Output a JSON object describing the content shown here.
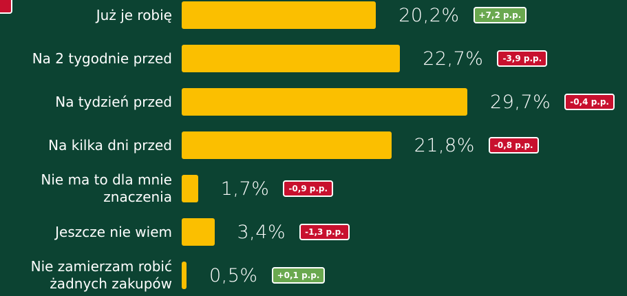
{
  "chart_data": {
    "type": "bar",
    "orientation": "horizontal",
    "categories": [
      "Już je robię",
      "Na 2 tygodnie przed",
      "Na tydzień przed",
      "Na kilka dni przed",
      "Nie ma to dla mnie znaczenia",
      "Jeszcze nie wiem",
      "Nie zamierzam robić żadnych zakupów"
    ],
    "values": [
      20.2,
      22.7,
      29.7,
      21.8,
      1.7,
      3.4,
      0.5
    ],
    "value_labels": [
      "20,2%",
      "22,7%",
      "29,7%",
      "21,8%",
      "1,7%",
      "3,4%",
      "0,5%"
    ],
    "color": "#fbbf00",
    "badges": [
      {
        "label": "+7,2 p.p.",
        "color": "#6aa84f"
      },
      {
        "label": "-3,9 p.p.",
        "color": "#c8102e"
      },
      {
        "label": "-0,4 p.p.",
        "color": "#c8102e"
      },
      {
        "label": "-0,8 p.p.",
        "color": "#c8102e"
      },
      {
        "label": "-0,9 p.p.",
        "color": "#c8102e"
      },
      {
        "label": "-1,3 p.p.",
        "color": "#c8102e"
      },
      {
        "label": "+0,1 p.p.",
        "color": "#6aa84f"
      }
    ]
  }
}
